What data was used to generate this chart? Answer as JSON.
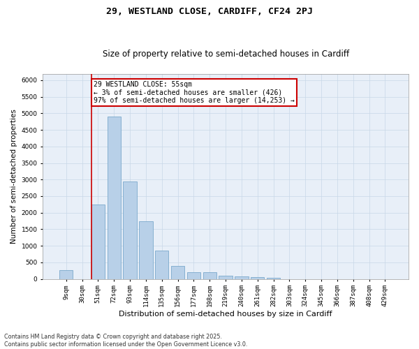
{
  "title": "29, WESTLAND CLOSE, CARDIFF, CF24 2PJ",
  "subtitle": "Size of property relative to semi-detached houses in Cardiff",
  "xlabel": "Distribution of semi-detached houses by size in Cardiff",
  "ylabel": "Number of semi-detached properties",
  "categories": [
    "9sqm",
    "30sqm",
    "51sqm",
    "72sqm",
    "93sqm",
    "114sqm",
    "135sqm",
    "156sqm",
    "177sqm",
    "198sqm",
    "219sqm",
    "240sqm",
    "261sqm",
    "282sqm",
    "303sqm",
    "324sqm",
    "345sqm",
    "366sqm",
    "387sqm",
    "408sqm",
    "429sqm"
  ],
  "values": [
    270,
    0,
    2250,
    4900,
    2950,
    1750,
    850,
    400,
    210,
    200,
    100,
    80,
    50,
    30,
    0,
    0,
    0,
    0,
    0,
    0,
    0
  ],
  "bar_color": "#b8d0e8",
  "bar_edge_color": "#6a9ec5",
  "vline_x_index": 2,
  "vline_color": "#cc0000",
  "annotation_text": "29 WESTLAND CLOSE: 55sqm\n← 3% of semi-detached houses are smaller (426)\n97% of semi-detached houses are larger (14,253) →",
  "annotation_box_color": "#cc0000",
  "ylim": [
    0,
    6200
  ],
  "yticks": [
    0,
    500,
    1000,
    1500,
    2000,
    2500,
    3000,
    3500,
    4000,
    4500,
    5000,
    5500,
    6000
  ],
  "grid_color": "#c8d8e8",
  "bg_color": "#e8eff8",
  "footnote": "Contains HM Land Registry data © Crown copyright and database right 2025.\nContains public sector information licensed under the Open Government Licence v3.0.",
  "title_fontsize": 9.5,
  "subtitle_fontsize": 8.5,
  "xlabel_fontsize": 8,
  "ylabel_fontsize": 7.5,
  "tick_fontsize": 6.5,
  "annotation_fontsize": 7,
  "footnote_fontsize": 5.8
}
